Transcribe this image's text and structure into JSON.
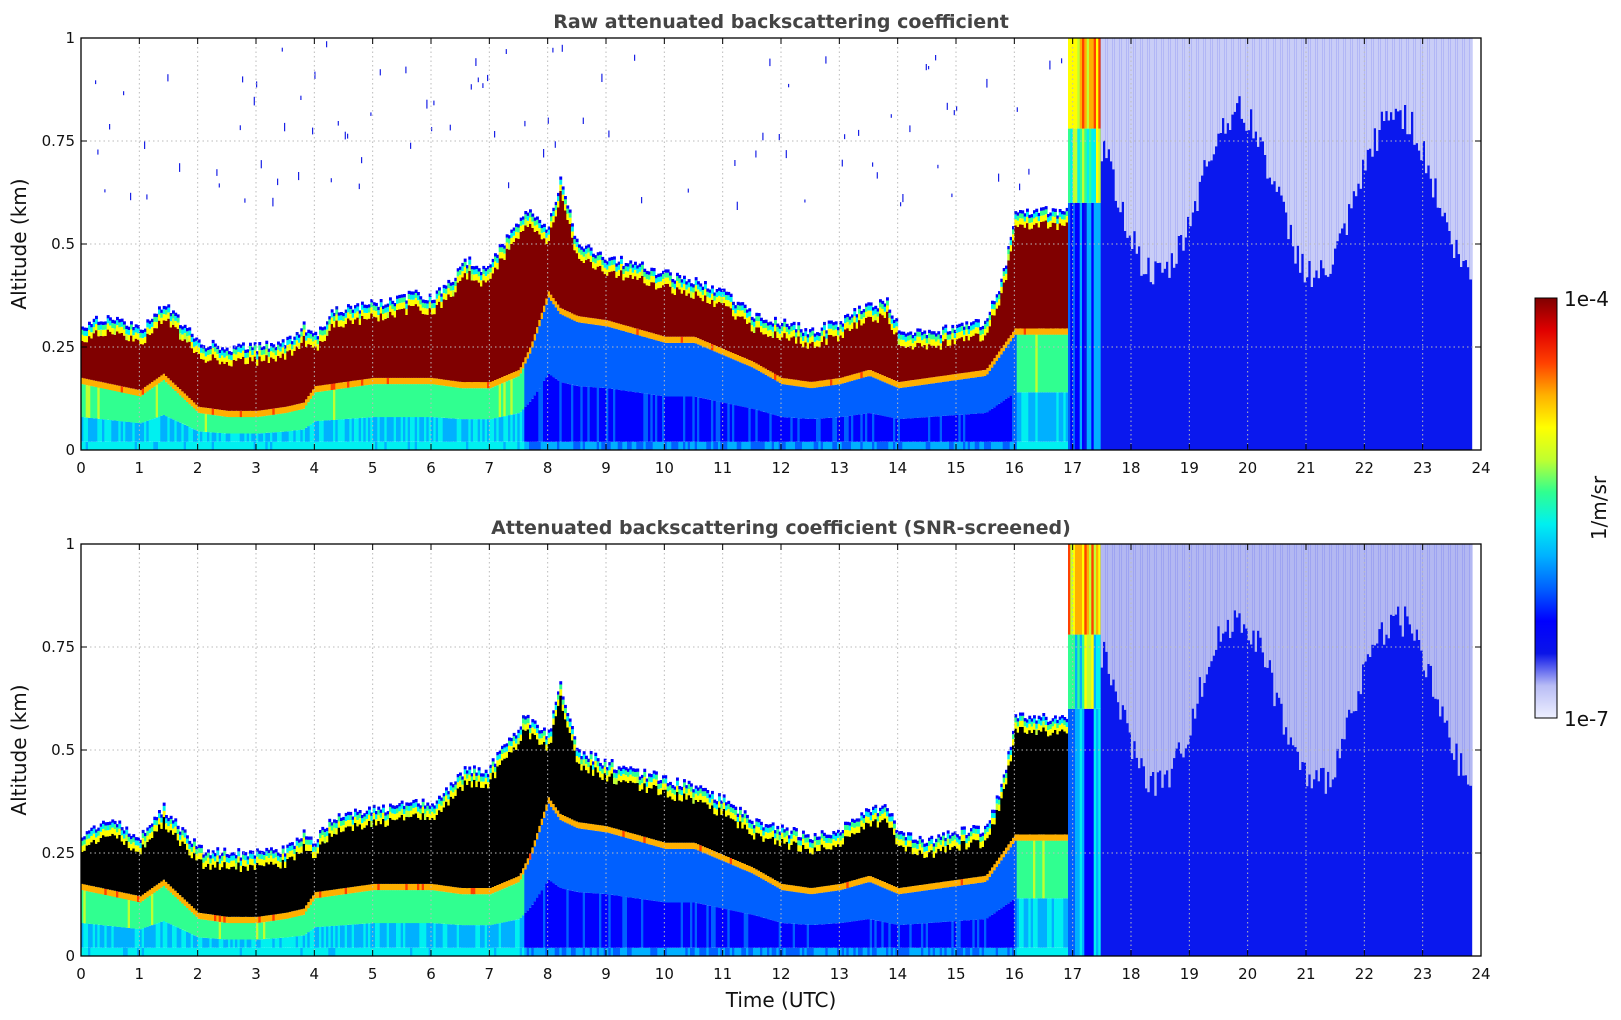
{
  "chart_data": [
    {
      "type": "heatmap",
      "title": "Raw attenuated backscattering coefficient",
      "xlabel": "",
      "ylabel": "Altitude (km)",
      "xlim": [
        0,
        24
      ],
      "ylim": [
        0,
        1
      ],
      "xticks": [
        "0",
        "1",
        "2",
        "3",
        "4",
        "5",
        "6",
        "7",
        "8",
        "9",
        "10",
        "11",
        "12",
        "13",
        "14",
        "15",
        "16",
        "17",
        "18",
        "19",
        "20",
        "21",
        "22",
        "23",
        "24"
      ],
      "yticks": [
        "0",
        "0.25",
        "0.5",
        "0.75",
        "1"
      ],
      "grid": true,
      "colorscale": "jet (log)",
      "screened": false,
      "layer_top_km": [
        [
          0,
          0.3
        ],
        [
          0.5,
          0.33
        ],
        [
          1,
          0.29
        ],
        [
          1.4,
          0.36
        ],
        [
          1.7,
          0.31
        ],
        [
          2,
          0.26
        ],
        [
          2.5,
          0.25
        ],
        [
          3,
          0.25
        ],
        [
          3.5,
          0.26
        ],
        [
          3.8,
          0.3
        ],
        [
          4,
          0.28
        ],
        [
          4.3,
          0.34
        ],
        [
          4.8,
          0.35
        ],
        [
          5.2,
          0.36
        ],
        [
          5.7,
          0.38
        ],
        [
          6,
          0.37
        ],
        [
          6.3,
          0.41
        ],
        [
          6.6,
          0.46
        ],
        [
          6.9,
          0.44
        ],
        [
          7.2,
          0.5
        ],
        [
          7.6,
          0.58
        ],
        [
          8,
          0.54
        ],
        [
          8.2,
          0.66
        ],
        [
          8.5,
          0.5
        ],
        [
          9,
          0.47
        ],
        [
          9.5,
          0.45
        ],
        [
          10,
          0.43
        ],
        [
          10.5,
          0.41
        ],
        [
          11,
          0.38
        ],
        [
          11.5,
          0.33
        ],
        [
          12,
          0.31
        ],
        [
          12.5,
          0.29
        ],
        [
          13,
          0.31
        ],
        [
          13.4,
          0.35
        ],
        [
          13.8,
          0.36
        ],
        [
          14,
          0.3
        ],
        [
          14.5,
          0.28
        ],
        [
          15,
          0.3
        ],
        [
          15.5,
          0.31
        ],
        [
          15.8,
          0.43
        ],
        [
          16,
          0.58
        ]
      ],
      "layer_bottom_km": [
        [
          0,
          0.16
        ],
        [
          1,
          0.13
        ],
        [
          1.4,
          0.17
        ],
        [
          2,
          0.09
        ],
        [
          2.5,
          0.08
        ],
        [
          3,
          0.08
        ],
        [
          3.5,
          0.09
        ],
        [
          3.8,
          0.1
        ],
        [
          4,
          0.14
        ],
        [
          4.5,
          0.15
        ],
        [
          5,
          0.16
        ],
        [
          5.5,
          0.16
        ],
        [
          6,
          0.16
        ],
        [
          6.5,
          0.15
        ],
        [
          7,
          0.15
        ],
        [
          7.5,
          0.18
        ],
        [
          7.7,
          0.24
        ],
        [
          8,
          0.37
        ],
        [
          8.2,
          0.33
        ],
        [
          8.5,
          0.31
        ],
        [
          9,
          0.3
        ],
        [
          9.5,
          0.28
        ],
        [
          10,
          0.26
        ],
        [
          10.5,
          0.26
        ],
        [
          11,
          0.23
        ],
        [
          11.5,
          0.2
        ],
        [
          12,
          0.16
        ],
        [
          12.5,
          0.15
        ],
        [
          13,
          0.16
        ],
        [
          13.5,
          0.18
        ],
        [
          14,
          0.15
        ],
        [
          14.5,
          0.16
        ],
        [
          15,
          0.17
        ],
        [
          15.5,
          0.18
        ],
        [
          16,
          0.28
        ]
      ],
      "cloud_onset_utc": 16.9,
      "data_end_utc": 23.8
    },
    {
      "type": "heatmap",
      "title": "Attenuated backscattering coefficient (SNR-screened)",
      "xlabel": "Time (UTC)",
      "ylabel": "Altitude (km)",
      "xlim": [
        0,
        24
      ],
      "ylim": [
        0,
        1
      ],
      "xticks": [
        "0",
        "1",
        "2",
        "3",
        "4",
        "5",
        "6",
        "7",
        "8",
        "9",
        "10",
        "11",
        "12",
        "13",
        "14",
        "15",
        "16",
        "17",
        "18",
        "19",
        "20",
        "21",
        "22",
        "23",
        "24"
      ],
      "yticks": [
        "0",
        "0.25",
        "0.5",
        "0.75",
        "1"
      ],
      "grid": true,
      "colorscale": "jet (log)",
      "screened": true,
      "saturated_color": "#000000",
      "cloud_onset_utc": 16.9,
      "data_end_utc": 23.8
    }
  ],
  "colorbar": {
    "max_label": "1e-4",
    "min_label": "1e-7",
    "units": "1/m/sr",
    "colors": [
      "#eef0ff",
      "#b8bcf5",
      "#0a14e8",
      "#0000ff",
      "#0060ff",
      "#00b0ff",
      "#00f0f0",
      "#30ff90",
      "#c0ff30",
      "#ffff00",
      "#ffb000",
      "#ff4000",
      "#e00000",
      "#800000"
    ]
  }
}
